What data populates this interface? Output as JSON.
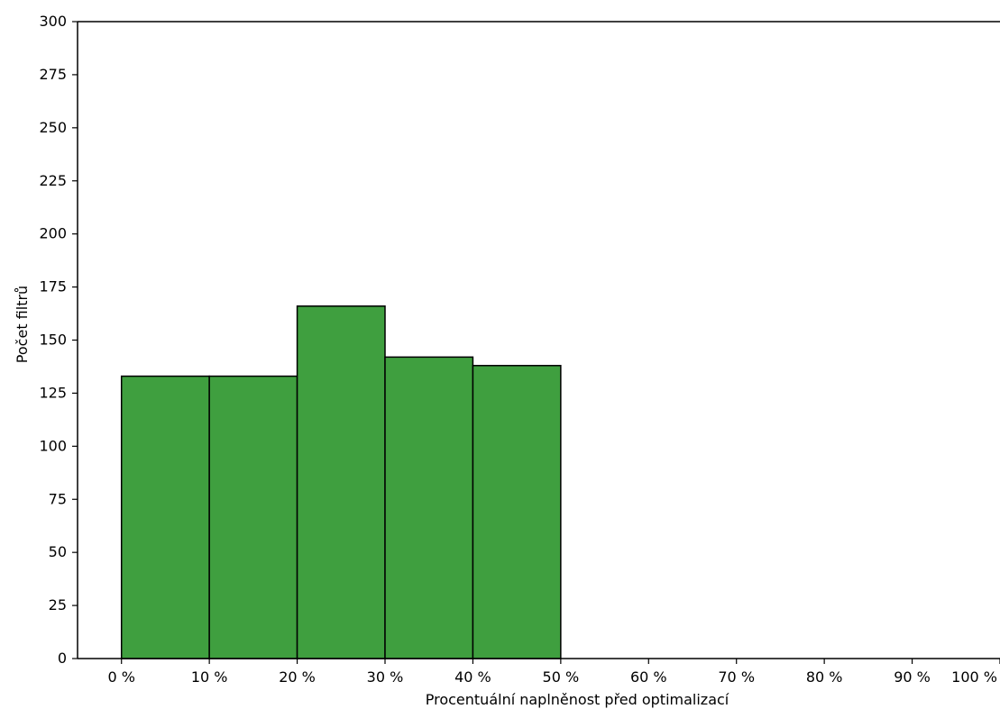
{
  "chart_data": {
    "type": "bar",
    "title": "",
    "xlabel": "Procentuální naplněnost před optimalizací",
    "ylabel": "Počet filtrů",
    "bin_edges": [
      0,
      10,
      20,
      30,
      40,
      50
    ],
    "values": [
      133,
      133,
      166,
      142,
      138
    ],
    "xlim": [
      -5,
      100
    ],
    "ylim": [
      0,
      300
    ],
    "xticks": [
      0,
      10,
      20,
      30,
      40,
      50,
      60,
      70,
      80,
      90,
      100
    ],
    "xtick_labels": [
      "0 %",
      "10 %",
      "20 %",
      "30 %",
      "40 %",
      "50 %",
      "60 %",
      "70 %",
      "80 %",
      "90 %",
      "100 %"
    ],
    "yticks": [
      0,
      25,
      50,
      75,
      100,
      125,
      150,
      175,
      200,
      225,
      250,
      275,
      300
    ],
    "ytick_labels": [
      "0",
      "25",
      "50",
      "75",
      "100",
      "125",
      "150",
      "175",
      "200",
      "225",
      "250",
      "275",
      "300"
    ],
    "grid": false,
    "colors": {
      "bar_fill": "#3f9f3f",
      "bar_edge": "#000000",
      "axis": "#000000",
      "text": "#000000"
    }
  }
}
